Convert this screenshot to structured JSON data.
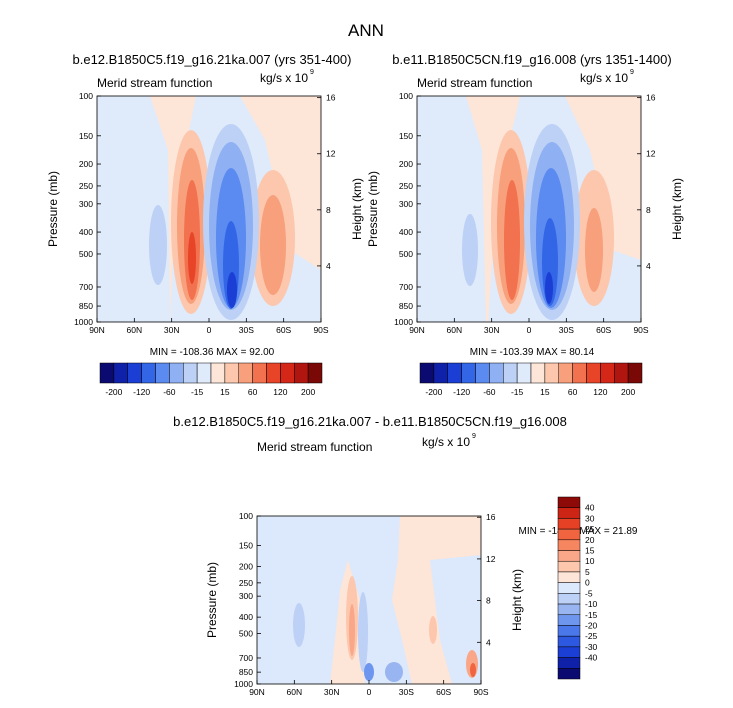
{
  "main_title": "ANN",
  "colorbar_main": {
    "colors": [
      "#0a0a70",
      "#0f21a8",
      "#1b3fd4",
      "#3266e6",
      "#5b8af0",
      "#8fb0f2",
      "#bcd1f5",
      "#dfeafb",
      "#fde6d8",
      "#fcc7ad",
      "#f89f7c",
      "#f2714e",
      "#e84428",
      "#d42718",
      "#b01510",
      "#7a0806"
    ],
    "labels": [
      "-200",
      "-120",
      "-60",
      "-15",
      "15",
      "60",
      "120",
      "200"
    ],
    "label_positions": [
      1,
      3,
      5,
      7,
      9,
      11,
      13,
      15
    ]
  },
  "colorbar_diff": {
    "colors": [
      "#0a0a70",
      "#0f21a8",
      "#1b3fd4",
      "#2d58e0",
      "#4a78ea",
      "#6f96ee",
      "#98b5f2",
      "#bdd0f6",
      "#dce8fb",
      "#fde6d8",
      "#fcc7ad",
      "#f9a788",
      "#f6865f",
      "#f06440",
      "#e64025",
      "#cc2415",
      "#8e0a08"
    ],
    "labels": [
      "40",
      "30",
      "25",
      "20",
      "15",
      "10",
      "5",
      "0",
      "-5",
      "-10",
      "-15",
      "-20",
      "-25",
      "-30",
      "-40"
    ]
  },
  "chart_data": [
    {
      "type": "heatmap",
      "title": "b.e12.B1850C5.f19_g16.21ka.007 (yrs 351-400)",
      "left_label": "Merid stream function",
      "right_label": "kg/s x 10",
      "right_label_sup": "9",
      "ylabel": "Pressure (mb)",
      "ylabel_right": "Height (km)",
      "x_ticks": [
        "90N",
        "60N",
        "30N",
        "0",
        "30S",
        "60S",
        "90S"
      ],
      "y_ticks": [
        "100",
        "150",
        "200",
        "250",
        "300",
        "400",
        "500",
        "700",
        "850",
        "1000"
      ],
      "y_ticks_right": [
        "16",
        "12",
        "8",
        "4"
      ],
      "stats": "MIN = -108.36   MAX = 92.00",
      "min": -108.36,
      "max": 92.0
    },
    {
      "type": "heatmap",
      "title": "b.e11.B1850C5CN.f19_g16.008 (yrs 1351-1400)",
      "left_label": "Merid stream function",
      "right_label": "kg/s x 10",
      "right_label_sup": "9",
      "ylabel": "Pressure (mb)",
      "ylabel_right": "Height (km)",
      "x_ticks": [
        "90N",
        "60N",
        "30N",
        "0",
        "30S",
        "60S",
        "90S"
      ],
      "y_ticks": [
        "100",
        "150",
        "200",
        "250",
        "300",
        "400",
        "500",
        "700",
        "850",
        "1000"
      ],
      "y_ticks_right": [
        "16",
        "12",
        "8",
        "4"
      ],
      "stats": "MIN = -103.39   MAX = 80.14",
      "min": -103.39,
      "max": 80.14
    },
    {
      "type": "heatmap",
      "title": "b.e12.B1850C5.f19_g16.21ka.007 - b.e11.B1850C5CN.f19_g16.008",
      "left_label": "Merid stream function",
      "right_label": "kg/s x 10",
      "right_label_sup": "9",
      "ylabel": "Pressure (mb)",
      "ylabel_right": "Height (km)",
      "x_ticks": [
        "90N",
        "60N",
        "30N",
        "0",
        "30S",
        "60S",
        "90S"
      ],
      "y_ticks": [
        "100",
        "150",
        "200",
        "250",
        "300",
        "400",
        "500",
        "700",
        "850",
        "1000"
      ],
      "y_ticks_right": [
        "16",
        "12",
        "8",
        "4"
      ],
      "stats": "MIN = -14.65   MAX = 21.89",
      "min": -14.65,
      "max": 21.89
    }
  ]
}
